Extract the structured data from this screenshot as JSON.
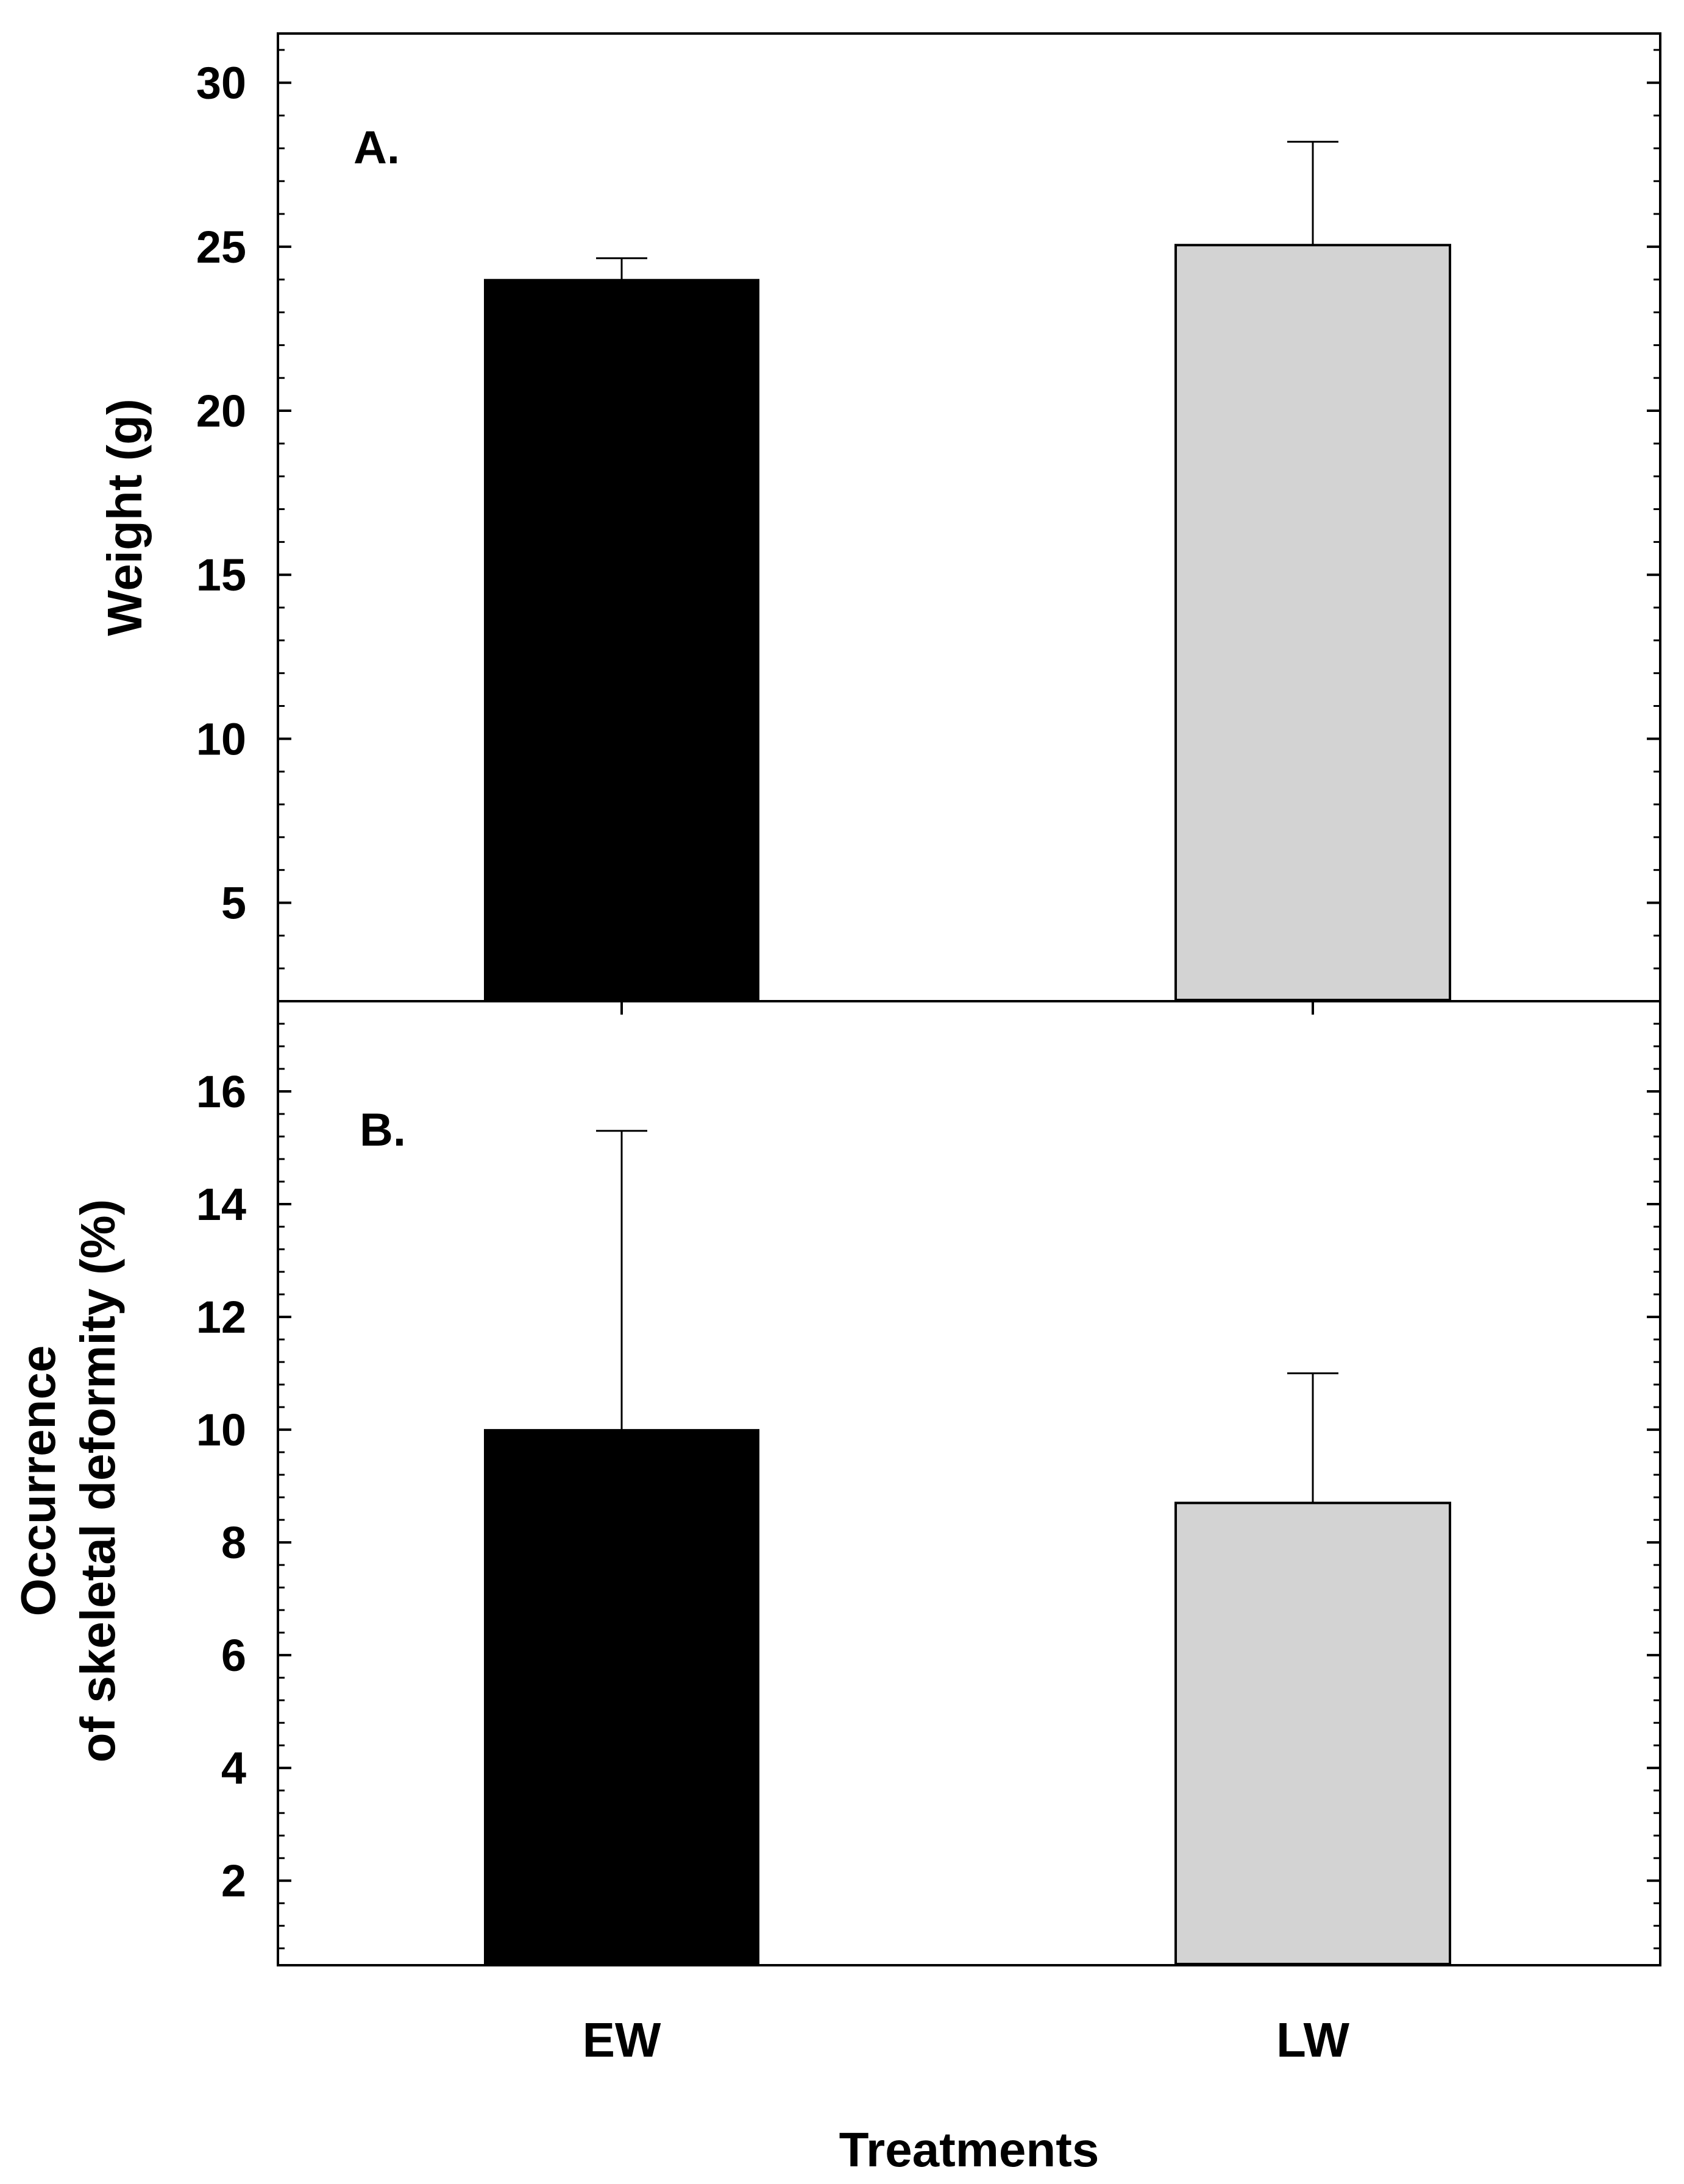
{
  "chart_data": [
    {
      "type": "bar",
      "panel_label": "A.",
      "title": "",
      "xlabel": "",
      "ylabel": "Weight (g)",
      "categories": [
        "EW",
        "LW"
      ],
      "values": [
        24.0,
        25.05
      ],
      "error_plus": [
        0.65,
        3.15
      ],
      "ylim": [
        2,
        31.5
      ],
      "yticks": [
        5,
        10,
        15,
        20,
        25,
        30
      ],
      "ytick_labels": [
        "5",
        "10",
        "15",
        "20",
        "25",
        "30"
      ],
      "minor_tick_step": 1,
      "bar_colors": [
        "#000000",
        "#d3d3d3"
      ],
      "grid": false
    },
    {
      "type": "bar",
      "panel_label": "B.",
      "title": "",
      "xlabel": "Treatments",
      "ylabel": "Occurrence of skeletal deformity (%)",
      "ylabel_lines": [
        "Occurrence",
        "of skeletal deformity (%)"
      ],
      "categories": [
        "EW",
        "LW"
      ],
      "values": [
        10.0,
        8.7
      ],
      "error_plus": [
        5.3,
        2.3
      ],
      "ylim": [
        0.5,
        17.6
      ],
      "yticks": [
        2,
        4,
        6,
        8,
        10,
        12,
        14,
        16
      ],
      "ytick_labels": [
        "2",
        "4",
        "6",
        "8",
        "10",
        "12",
        "14",
        "16"
      ],
      "minor_tick_step": 0.4,
      "bar_colors": [
        "#000000",
        "#d3d3d3"
      ],
      "grid": false
    }
  ]
}
